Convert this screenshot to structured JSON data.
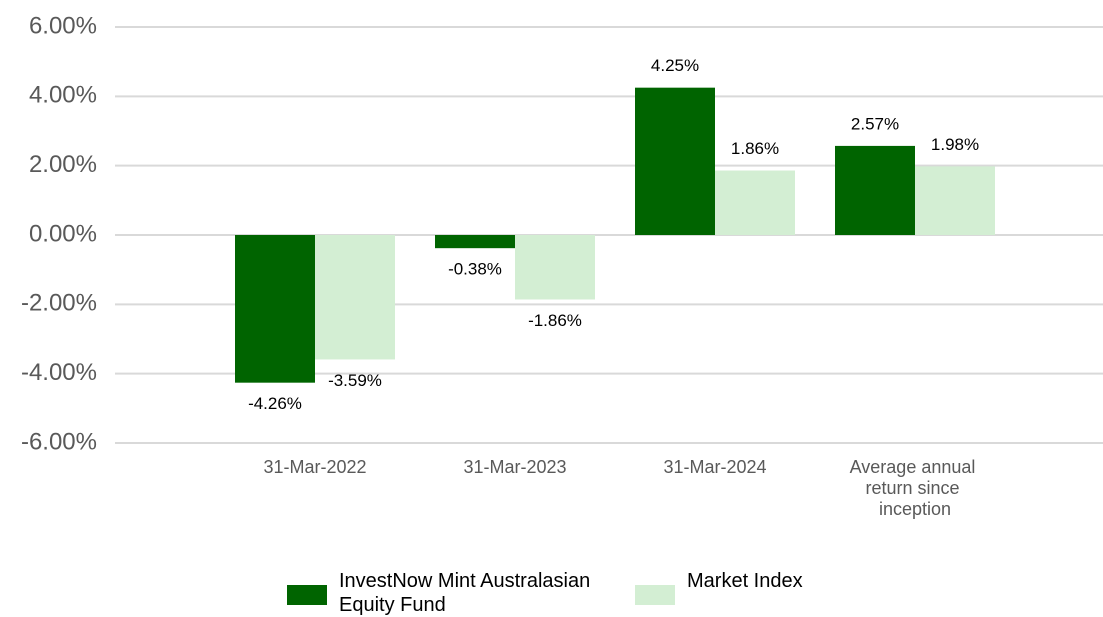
{
  "chart_data": {
    "type": "bar",
    "categories": [
      "31-Mar-2022",
      "31-Mar-2023",
      "31-Mar-2024",
      "Average annual return since inception"
    ],
    "series": [
      {
        "name": "InvestNow Mint Australasian Equity Fund",
        "color": "#006400",
        "values": [
          -4.26,
          -0.38,
          4.25,
          2.57
        ],
        "value_labels": [
          "-4.26%",
          "-0.38%",
          "4.25%",
          "2.57%"
        ]
      },
      {
        "name": "Market Index",
        "color": "#d3eed3",
        "values": [
          -3.59,
          -1.86,
          1.86,
          1.98
        ],
        "value_labels": [
          "-3.59%",
          "-1.86%",
          "1.86%",
          "1.98%"
        ]
      }
    ],
    "ylim": [
      -6,
      6
    ],
    "yticks": [
      {
        "value": 6,
        "label": "6.00%"
      },
      {
        "value": 4,
        "label": "4.00%"
      },
      {
        "value": 2,
        "label": "2.00%"
      },
      {
        "value": 0,
        "label": "0.00%"
      },
      {
        "value": -2,
        "label": "-2.00%"
      },
      {
        "value": -4,
        "label": "-4.00%"
      },
      {
        "value": -6,
        "label": "-6.00%"
      }
    ],
    "grid": true,
    "legend": "bottom"
  }
}
